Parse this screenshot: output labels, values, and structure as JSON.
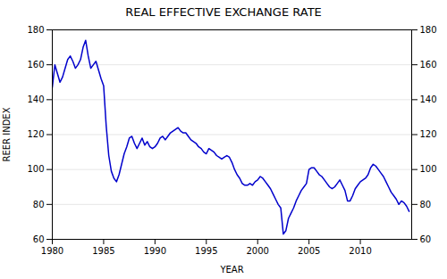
{
  "chart_data": {
    "type": "line",
    "title": "REAL EFFECTIVE EXCHANGE RATE",
    "xlabel": "YEAR",
    "ylabel": "REER INDEX",
    "color": "#0000cc",
    "grid": true,
    "xlim": [
      1980,
      2015
    ],
    "xticks": [
      1980,
      1985,
      1990,
      1995,
      2000,
      2005,
      2010
    ],
    "ylim": [
      60,
      180
    ],
    "yticks": [
      60,
      80,
      100,
      120,
      140,
      160,
      180
    ],
    "y2lim": [
      60,
      180
    ],
    "y2ticks": [
      60,
      80,
      100,
      120,
      140,
      160,
      180
    ],
    "x": [
      1980.0,
      1980.25,
      1980.5,
      1980.75,
      1981.0,
      1981.25,
      1981.5,
      1981.75,
      1982.0,
      1982.25,
      1982.5,
      1982.75,
      1983.0,
      1983.25,
      1983.5,
      1983.75,
      1984.0,
      1984.25,
      1984.5,
      1984.75,
      1985.0,
      1985.25,
      1985.5,
      1985.75,
      1986.0,
      1986.25,
      1986.5,
      1986.75,
      1987.0,
      1987.25,
      1987.5,
      1987.75,
      1988.0,
      1988.25,
      1988.5,
      1988.75,
      1989.0,
      1989.25,
      1989.5,
      1989.75,
      1990.0,
      1990.25,
      1990.5,
      1990.75,
      1991.0,
      1991.25,
      1991.5,
      1991.75,
      1992.0,
      1992.25,
      1992.5,
      1992.75,
      1993.0,
      1993.25,
      1993.5,
      1993.75,
      1994.0,
      1994.25,
      1994.5,
      1994.75,
      1995.0,
      1995.25,
      1995.5,
      1995.75,
      1996.0,
      1996.25,
      1996.5,
      1996.75,
      1997.0,
      1997.25,
      1997.5,
      1997.75,
      1998.0,
      1998.25,
      1998.5,
      1998.75,
      1999.0,
      1999.25,
      1999.5,
      1999.75,
      2000.0,
      2000.25,
      2000.5,
      2000.75,
      2001.0,
      2001.25,
      2001.5,
      2001.75,
      2002.0,
      2002.25,
      2002.5,
      2002.75,
      2003.0,
      2003.25,
      2003.5,
      2003.75,
      2004.0,
      2004.25,
      2004.5,
      2004.75,
      2005.0,
      2005.25,
      2005.5,
      2005.75,
      2006.0,
      2006.25,
      2006.5,
      2006.75,
      2007.0,
      2007.25,
      2007.5,
      2007.75,
      2008.0,
      2008.25,
      2008.5,
      2008.75,
      2009.0,
      2009.25,
      2009.5,
      2009.75,
      2010.0,
      2010.25,
      2010.5,
      2010.75,
      2011.0,
      2011.25,
      2011.5,
      2011.75,
      2012.0,
      2012.25,
      2012.5,
      2012.75,
      2013.0,
      2013.25,
      2013.5,
      2013.75,
      2014.0,
      2014.25,
      2014.5,
      2014.75
    ],
    "values": [
      147,
      160,
      155,
      150,
      153,
      158,
      163,
      165,
      162,
      158,
      160,
      163,
      170,
      174,
      165,
      158,
      160,
      162,
      157,
      152,
      148,
      125,
      108,
      99,
      95,
      93,
      97,
      103,
      109,
      113,
      118,
      119,
      115,
      112,
      115,
      118,
      114,
      116,
      113,
      112,
      113,
      115,
      118,
      119,
      117,
      119,
      121,
      122,
      123,
      124,
      122,
      121,
      121,
      119,
      117,
      116,
      115,
      113,
      112,
      110,
      109,
      112,
      111,
      110,
      108,
      107,
      106,
      107,
      108,
      107,
      104,
      100,
      97,
      95,
      92,
      91,
      91,
      92,
      91,
      93,
      94,
      96,
      95,
      93,
      91,
      89,
      86,
      83,
      80,
      78,
      63,
      65,
      72,
      75,
      78,
      82,
      85,
      88,
      90,
      92,
      100,
      101,
      101,
      99,
      97,
      96,
      94,
      92,
      90,
      89,
      90,
      92,
      94,
      91,
      88,
      82,
      82,
      85,
      89,
      91,
      93,
      94,
      95,
      97,
      101,
      103,
      102,
      100,
      98,
      96,
      93,
      90,
      87,
      85,
      83,
      80,
      82,
      81,
      79,
      76
    ]
  }
}
